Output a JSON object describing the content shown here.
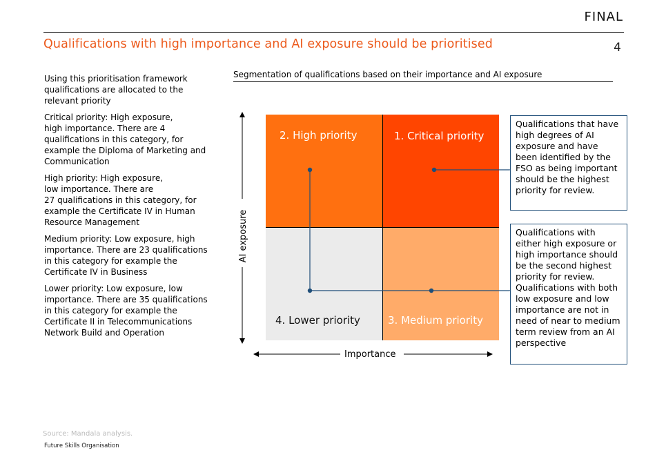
{
  "header": {
    "status": "FINAL",
    "title": "Qualifications with high importance and AI exposure should be prioritised",
    "page_number": "4"
  },
  "left_panel": {
    "paragraphs": [
      "Using this prioritisation framework qualifications are allocated to the relevant priority",
      "Critical priority: High exposure,\nhigh importance. There are 4 qualifications in this category, for example the Diploma of Marketing and Communication",
      "High priority: High exposure,\nlow importance. There are\n27 qualifications  in this category, for example the Certificate IV in Human Resource Management",
      "Medium priority: Low exposure, high importance. There are 23 qualifications in this category for example the Certificate IV in Business",
      "Lower priority: Low exposure, low importance. There are 35 qualifications in this category for example the Certificate II in Telecommunications Network Build and Operation"
    ]
  },
  "diagram": {
    "subtitle": "Segmentation of qualifications based on their importance and AI exposure",
    "x_axis_label": "Importance",
    "y_axis_label": "AI exposure",
    "quadrants": {
      "high": "2. High priority",
      "critical": "1. Critical priority",
      "lower": "4. Lower priority",
      "medium": "3. Medium priority"
    },
    "colors": {
      "high": "#ff7010",
      "critical": "#ff4500",
      "lower": "#ebebeb",
      "medium": "#ffab69",
      "connector": "#1f4e79"
    },
    "callouts": {
      "top": "Qualifications that have high degrees of AI exposure and have been identified by the FSO as being important should be the highest priority for review.",
      "bottom": "Qualifications with either high exposure or high importance should be the second highest priority for review. Qualifications with both low exposure and low importance are not in need of near to medium term review from an AI perspective"
    }
  },
  "footer": {
    "source": "Source: Mandala analysis.",
    "organisation": "Future Skills Organisation"
  }
}
